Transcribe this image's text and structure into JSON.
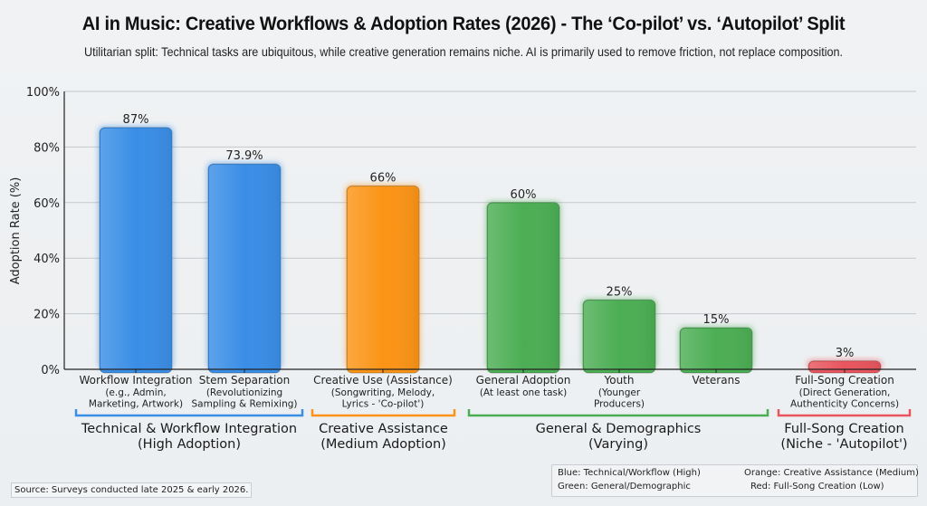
{
  "title": "AI in Music: Creative Workflows & Adoption Rates (2026) - The ‘Co-pilot’ vs. ‘Autopilot’ Split",
  "subtitle": "Utilitarian split: Technical tasks are ubiquitous, while creative generation remains niche. AI is primarily used to remove friction, not replace composition.",
  "source": "Source: Surveys conducted late 2025 & early 2026.",
  "legend": [
    {
      "text": "Blue: Technical/Workflow (High)"
    },
    {
      "text": "Orange: Creative Assistance (Medium)"
    },
    {
      "text": "Green: General/Demographic"
    },
    {
      "text": "Red: Full-Song Creation (Low)"
    }
  ],
  "colors": {
    "blue": "#3a8ee6",
    "orange": "#fb9416",
    "green": "#4cae54",
    "red": "#e8555e"
  },
  "chart_data": {
    "type": "bar",
    "title": "AI in Music: Creative Workflows & Adoption Rates (2026) - The ‘Co-pilot’ vs. ‘Autopilot’ Split",
    "xlabel": "",
    "ylabel": "Adoption Rate (%)",
    "ylim": [
      0,
      100
    ],
    "yticks": [
      0,
      20,
      40,
      60,
      80,
      100
    ],
    "ytick_labels": [
      "0%",
      "20%",
      "40%",
      "60%",
      "80%",
      "100%"
    ],
    "grid": true,
    "categories": [
      {
        "label": "Workflow Integration",
        "sub": [
          "(e.g., Admin,",
          "Marketing, Artwork)"
        ],
        "value": 87,
        "value_label": "87%",
        "color": "blue"
      },
      {
        "label": "Stem Separation",
        "sub": [
          "(Revolutionizing",
          "Sampling & Remixing)"
        ],
        "value": 73.9,
        "value_label": "73.9%",
        "color": "blue"
      },
      {
        "label": "Creative Use (Assistance)",
        "sub": [
          "(Songwriting, Melody,",
          "Lyrics - 'Co-pilot')"
        ],
        "value": 66,
        "value_label": "66%",
        "color": "orange"
      },
      {
        "label": "General Adoption",
        "sub": [
          "(At least one task)"
        ],
        "value": 60,
        "value_label": "60%",
        "color": "green"
      },
      {
        "label": "Youth",
        "sub": [
          "(Younger",
          "Producers)"
        ],
        "value": 25,
        "value_label": "25%",
        "color": "green"
      },
      {
        "label": "Veterans",
        "sub": [],
        "value": 15,
        "value_label": "15%",
        "color": "green"
      },
      {
        "label": "Full-Song Creation",
        "sub": [
          "(Direct Generation,",
          "Authenticity Concerns)"
        ],
        "value": 3,
        "value_label": "3%",
        "color": "red"
      }
    ],
    "groups": [
      {
        "label": [
          "Technical & Workflow Integration",
          "(High Adoption)"
        ],
        "color": "blue",
        "members": [
          0,
          1
        ]
      },
      {
        "label": [
          "Creative Assistance",
          "(Medium Adoption)"
        ],
        "color": "orange",
        "members": [
          2
        ]
      },
      {
        "label": [
          "General & Demographics",
          "(Varying)"
        ],
        "color": "green",
        "members": [
          3,
          4,
          5
        ]
      },
      {
        "label": [
          "Full-Song Creation",
          "(Niche - 'Autopilot')"
        ],
        "color": "red",
        "members": [
          6
        ]
      }
    ]
  }
}
